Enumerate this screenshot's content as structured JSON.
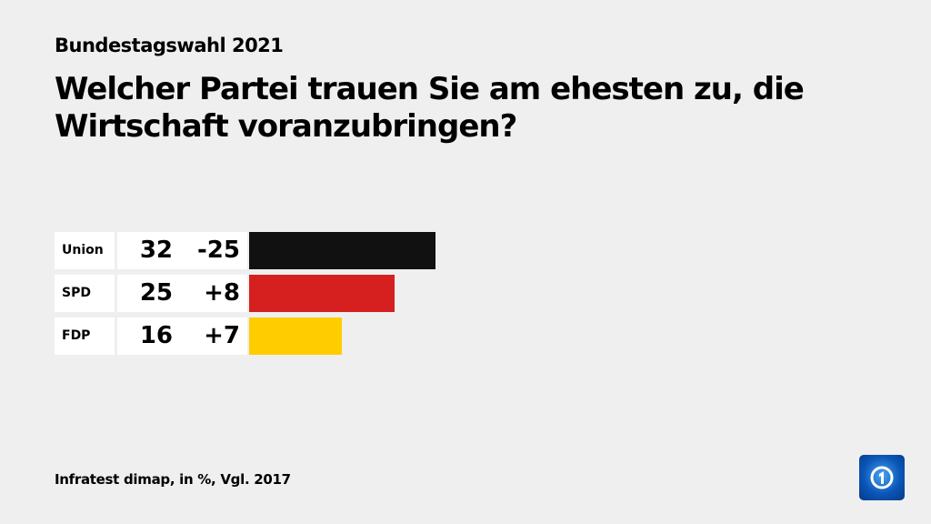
{
  "chart_data": {
    "type": "bar",
    "supertitle": "Bundestagswahl 2021",
    "title": "Welcher Partei trauen Sie am ehesten zu, die Wirtschaft voranzubringen?",
    "categories": [
      "Union",
      "SPD",
      "FDP"
    ],
    "values": [
      32,
      25,
      16
    ],
    "changes": [
      "-25",
      "+8",
      "+7"
    ],
    "colors": [
      "#111111",
      "#d62020",
      "#ffcc00"
    ],
    "source": "Infratest dimap, in %, Vgl. 2017"
  }
}
